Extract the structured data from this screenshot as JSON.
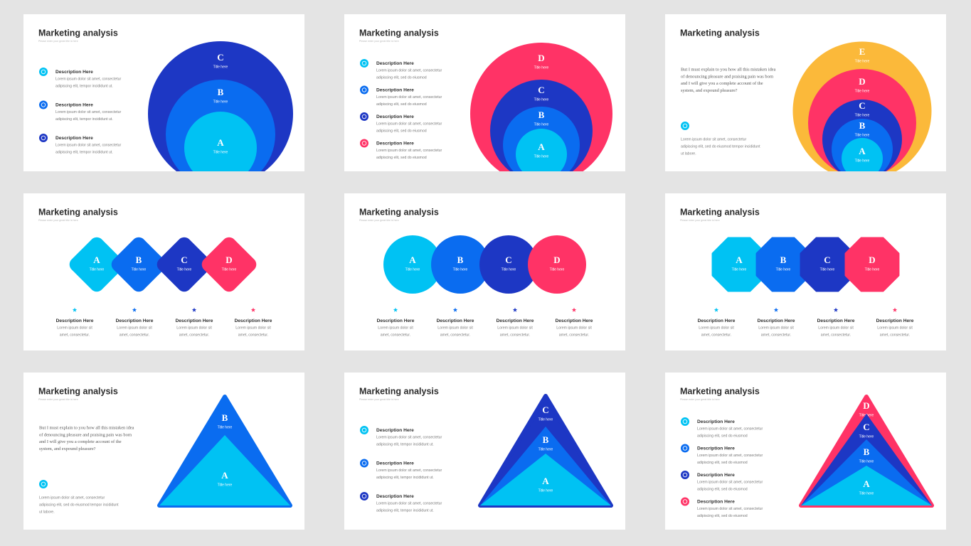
{
  "slides": [
    {
      "title": "Marketing analysis",
      "subtitle": "Please enter your great title is here",
      "items": [
        {
          "heading": "Description Here",
          "lines": [
            "Lorem ipsum dolor sit amet, consectetur",
            "adipiscing elit, tempor incididunt ut."
          ],
          "color": "#00c2f3"
        },
        {
          "heading": "Description Here",
          "lines": [
            "Lorem ipsum dolor sit amet, consectetur",
            "adipiscing elit, tempor incididunt ut."
          ],
          "color": "#0a6cf0"
        },
        {
          "heading": "Description Here",
          "lines": [
            "Lorem ipsum dolor sit amet, consectetur",
            "adipiscing elit, tempor incididunt ut."
          ],
          "color": "#1d37c4"
        }
      ],
      "shapes": [
        {
          "letter": "C",
          "label": "Title here",
          "color": "#1d37c4"
        },
        {
          "letter": "B",
          "label": "Title here",
          "color": "#0a6cf0"
        },
        {
          "letter": "A",
          "label": "Title here",
          "color": "#00c2f3"
        }
      ]
    },
    {
      "title": "Marketing analysis",
      "subtitle": "Please enter your great title is here",
      "items": [
        {
          "heading": "Description Here",
          "lines": [
            "Lorem ipsum dolor sit amet, consectetur",
            "adipiscing elit, sed do eiusmod"
          ],
          "color": "#00c2f3"
        },
        {
          "heading": "Description Here",
          "lines": [
            "Lorem ipsum dolor sit amet, consectetur",
            "adipiscing elit, sed do eiusmod"
          ],
          "color": "#0a6cf0"
        },
        {
          "heading": "Description Here",
          "lines": [
            "Lorem ipsum dolor sit amet, consectetur",
            "adipiscing elit, sed do eiusmod"
          ],
          "color": "#1d37c4"
        },
        {
          "heading": "Description Here",
          "lines": [
            "Lorem ipsum dolor sit amet, consectetur",
            "adipiscing elit, sed do eiusmod"
          ],
          "color": "#ff3366"
        }
      ],
      "shapes": [
        {
          "letter": "D",
          "label": "Title here",
          "color": "#ff3366"
        },
        {
          "letter": "C",
          "label": "Title here",
          "color": "#1d37c4"
        },
        {
          "letter": "B",
          "label": "Title here",
          "color": "#0a6cf0"
        },
        {
          "letter": "A",
          "label": "Title here",
          "color": "#00c2f3"
        }
      ]
    },
    {
      "title": "Marketing analysis",
      "paragraph": [
        "But I must explain to you how all this mistaken idea",
        "of denouncing pleasure and praising pain was born",
        "and I will give you a complete account of the",
        "system, and expound pleasure?"
      ],
      "icon": "#00c2f3",
      "note": [
        "Lorem ipsum dolor sit amet, consectetur",
        "adipiscing elit, sed do eiusmod tempor incididunt",
        "ut labore."
      ],
      "shapes": [
        {
          "letter": "E",
          "label": "Title here",
          "color": "#fbb93a"
        },
        {
          "letter": "D",
          "label": "Title here",
          "color": "#ff3366"
        },
        {
          "letter": "C",
          "label": "Title here",
          "color": "#1d37c4"
        },
        {
          "letter": "B",
          "label": "Title here",
          "color": "#0a6cf0"
        },
        {
          "letter": "A",
          "label": "Title here",
          "color": "#00c2f3"
        }
      ]
    },
    {
      "title": "Marketing analysis",
      "subtitle": "Please enter your great title is here",
      "items": [
        {
          "heading": "Description Here",
          "lines": [
            "Lorem ipsum dolor sit",
            "amet, consectetur."
          ],
          "color": "#00c2f3"
        },
        {
          "heading": "Description Here",
          "lines": [
            "Lorem ipsum dolor sit",
            "amet, consectetur."
          ],
          "color": "#0a6cf0"
        },
        {
          "heading": "Description Here",
          "lines": [
            "Lorem ipsum dolor sit",
            "amet, consectetur."
          ],
          "color": "#1d37c4"
        },
        {
          "heading": "Description Here",
          "lines": [
            "Lorem ipsum dolor sit",
            "amet, consectetur."
          ],
          "color": "#ff3366"
        }
      ],
      "shapes": [
        {
          "letter": "A",
          "label": "Title here",
          "color": "#00c2f3"
        },
        {
          "letter": "B",
          "label": "Title here",
          "color": "#0a6cf0"
        },
        {
          "letter": "C",
          "label": "Title here",
          "color": "#1d37c4"
        },
        {
          "letter": "D",
          "label": "Title here",
          "color": "#ff3366"
        }
      ]
    },
    {
      "title": "Marketing analysis",
      "subtitle": "Please enter your great title is here",
      "items": [
        {
          "heading": "Description Here",
          "lines": [
            "Lorem ipsum dolor sit",
            "amet, consectetur."
          ],
          "color": "#00c2f3"
        },
        {
          "heading": "Description Here",
          "lines": [
            "Lorem ipsum dolor sit",
            "amet, consectetur."
          ],
          "color": "#0a6cf0"
        },
        {
          "heading": "Description Here",
          "lines": [
            "Lorem ipsum dolor sit",
            "amet, consectetur."
          ],
          "color": "#1d37c4"
        },
        {
          "heading": "Description Here",
          "lines": [
            "Lorem ipsum dolor sit",
            "amet, consectetur."
          ],
          "color": "#ff3366"
        }
      ],
      "shapes": [
        {
          "letter": "A",
          "label": "Title here",
          "color": "#00c2f3"
        },
        {
          "letter": "B",
          "label": "Title here",
          "color": "#0a6cf0"
        },
        {
          "letter": "C",
          "label": "Title here",
          "color": "#1d37c4"
        },
        {
          "letter": "D",
          "label": "Title here",
          "color": "#ff3366"
        }
      ]
    },
    {
      "title": "Marketing analysis",
      "subtitle": "Please enter your great title is here",
      "items": [
        {
          "heading": "Description Here",
          "lines": [
            "Lorem ipsum dolor sit",
            "amet, consectetur."
          ],
          "color": "#00c2f3"
        },
        {
          "heading": "Description Here",
          "lines": [
            "Lorem ipsum dolor sit",
            "amet, consectetur."
          ],
          "color": "#0a6cf0"
        },
        {
          "heading": "Description Here",
          "lines": [
            "Lorem ipsum dolor sit",
            "amet, consectetur."
          ],
          "color": "#1d37c4"
        },
        {
          "heading": "Description Here",
          "lines": [
            "Lorem ipsum dolor sit",
            "amet, consectetur."
          ],
          "color": "#ff3366"
        }
      ],
      "shapes": [
        {
          "letter": "A",
          "label": "Title here",
          "color": "#00c2f3"
        },
        {
          "letter": "B",
          "label": "Title here",
          "color": "#0a6cf0"
        },
        {
          "letter": "C",
          "label": "Title here",
          "color": "#1d37c4"
        },
        {
          "letter": "D",
          "label": "Title here",
          "color": "#ff3366"
        }
      ]
    },
    {
      "title": "Marketing analysis",
      "subtitle": "Please enter your great title is here",
      "paragraph": [
        "But I must explain to you how all this mistaken idea",
        "of denouncing pleasure and praising pain was born",
        "and I will give you a complete account of the",
        "system, and expound pleasure?"
      ],
      "icon": "#00c2f3",
      "note": [
        "Lorem ipsum dolor sit amet, consectetur",
        "adipiscing elit, sed do eiusmod tempor incididunt",
        "ut labore."
      ],
      "shapes": [
        {
          "letter": "B",
          "label": "Title here",
          "color": "#0a6cf0"
        },
        {
          "letter": "A",
          "label": "Title here",
          "color": "#00c2f3"
        }
      ]
    },
    {
      "title": "Marketing analysis",
      "subtitle": "Please enter your great title is here",
      "items": [
        {
          "heading": "Description Here",
          "lines": [
            "Lorem ipsum dolor sit amet, consectetur",
            "adipiscing elit, tempor incididunt ut."
          ],
          "color": "#00c2f3"
        },
        {
          "heading": "Description Here",
          "lines": [
            "Lorem ipsum dolor sit amet, consectetur",
            "adipiscing elit, tempor incididunt ut."
          ],
          "color": "#0a6cf0"
        },
        {
          "heading": "Description Here",
          "lines": [
            "Lorem ipsum dolor sit amet, consectetur",
            "adipiscing elit, tempor incididunt ut."
          ],
          "color": "#1d37c4"
        }
      ],
      "shapes": [
        {
          "letter": "C",
          "label": "Title here",
          "color": "#1d37c4"
        },
        {
          "letter": "B",
          "label": "Title here",
          "color": "#0a6cf0"
        },
        {
          "letter": "A",
          "label": "Title here",
          "color": "#00c2f3"
        }
      ]
    },
    {
      "title": "Marketing analysis",
      "subtitle": "Please enter your great title is here",
      "items": [
        {
          "heading": "Description Here",
          "lines": [
            "Lorem ipsum dolor sit amet, consectetur",
            "adipiscing elit, sed do eiusmod"
          ],
          "color": "#00c2f3"
        },
        {
          "heading": "Description Here",
          "lines": [
            "Lorem ipsum dolor sit amet, consectetur",
            "adipiscing elit, sed do eiusmod"
          ],
          "color": "#0a6cf0"
        },
        {
          "heading": "Description Here",
          "lines": [
            "Lorem ipsum dolor sit amet, consectetur",
            "adipiscing elit, sed do eiusmod"
          ],
          "color": "#1d37c4"
        },
        {
          "heading": "Description Here",
          "lines": [
            "Lorem ipsum dolor sit amet, consectetur",
            "adipiscing elit, sed do eiusmod"
          ],
          "color": "#ff3366"
        }
      ],
      "shapes": [
        {
          "letter": "D",
          "label": "Title here",
          "color": "#ff3366"
        },
        {
          "letter": "C",
          "label": "Title here",
          "color": "#1d37c4"
        },
        {
          "letter": "B",
          "label": "Title here",
          "color": "#0a6cf0"
        },
        {
          "letter": "A",
          "label": "Title here",
          "color": "#00c2f3"
        }
      ]
    }
  ]
}
